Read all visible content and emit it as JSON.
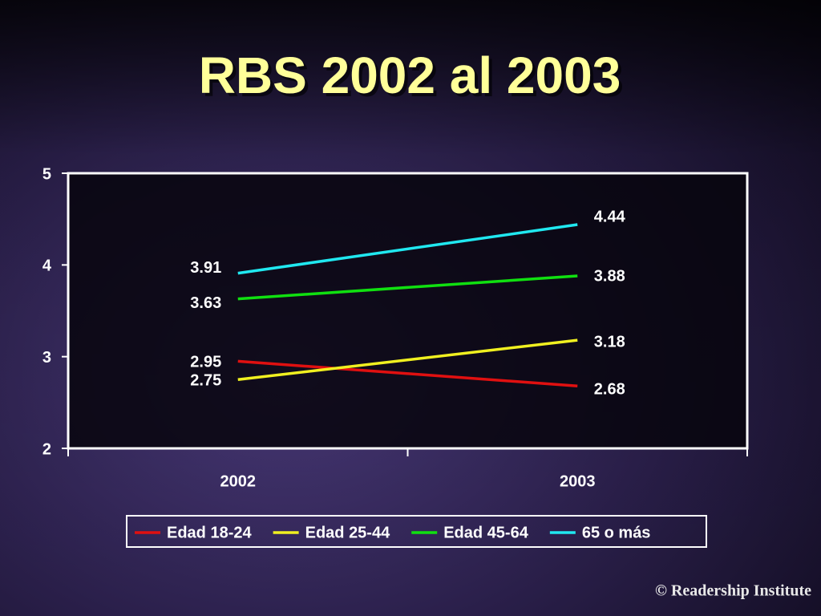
{
  "chart_data": {
    "type": "line",
    "title": "RBS 2002 al 2003",
    "categories": [
      "2002",
      "2003"
    ],
    "series": [
      {
        "name": "Edad 18-24",
        "color": "#e01010",
        "values": [
          2.95,
          2.68
        ]
      },
      {
        "name": "Edad 25-44",
        "color": "#f0f020",
        "values": [
          2.75,
          3.18
        ]
      },
      {
        "name": "Edad 45-64",
        "color": "#10e010",
        "values": [
          3.63,
          3.88
        ]
      },
      {
        "name": "65 o más",
        "color": "#20e8f0",
        "values": [
          3.91,
          4.44
        ]
      }
    ],
    "ylim": [
      2,
      5
    ],
    "yticks": [
      2,
      3,
      4,
      5
    ],
    "legend": "bottom"
  },
  "footer": "© Readership Institute"
}
